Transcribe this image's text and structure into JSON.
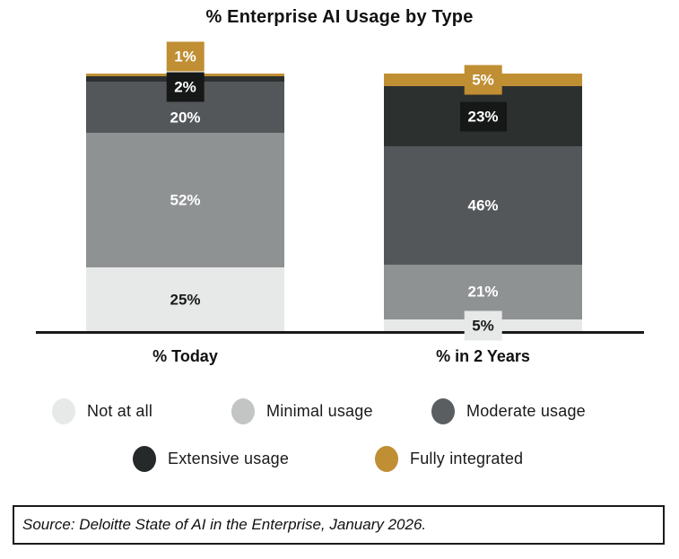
{
  "title": "% Enterprise AI Usage by Type",
  "chart_data": {
    "type": "bar",
    "stacked": true,
    "percent_stack": true,
    "unit": "%",
    "title": "% Enterprise AI Usage by Type",
    "categories": [
      "% Today",
      "% in 2 Years"
    ],
    "series": [
      {
        "name": "Not at all",
        "values": [
          25,
          5
        ],
        "color": "#E7E8E8",
        "legend_color": "#E7E8E8",
        "label_bg": "#E7E8E8",
        "text_color": "#1A1A1A"
      },
      {
        "name": "Minimal usage",
        "values": [
          52,
          21
        ],
        "color": "#8F9293",
        "legend_color": "#C3C4C4",
        "label_bg": "#8F9293",
        "text_color": "#FFFFFF"
      },
      {
        "name": "Moderate usage",
        "values": [
          20,
          46
        ],
        "color": "#54575A",
        "legend_color": "#5A5E60",
        "label_bg": "#54575A",
        "text_color": "#FFFFFF"
      },
      {
        "name": "Extensive usage",
        "values": [
          2,
          23
        ],
        "color": "#2C302F",
        "legend_color": "#26292A",
        "label_bg": "#161818",
        "text_color": "#FFFFFF"
      },
      {
        "name": "Fully integrated",
        "values": [
          1,
          5
        ],
        "color": "#C08E33",
        "legend_color": "#C08E33",
        "label_bg": "#C08E33",
        "text_color": "#FFFFFF"
      }
    ],
    "ylim": [
      0,
      100
    ],
    "grid": false,
    "axis_line_color": "#1A1A1A",
    "legend_position": "bottom"
  },
  "source": {
    "text": "Source: Deloitte State of AI in the Enterprise, January 2026."
  }
}
